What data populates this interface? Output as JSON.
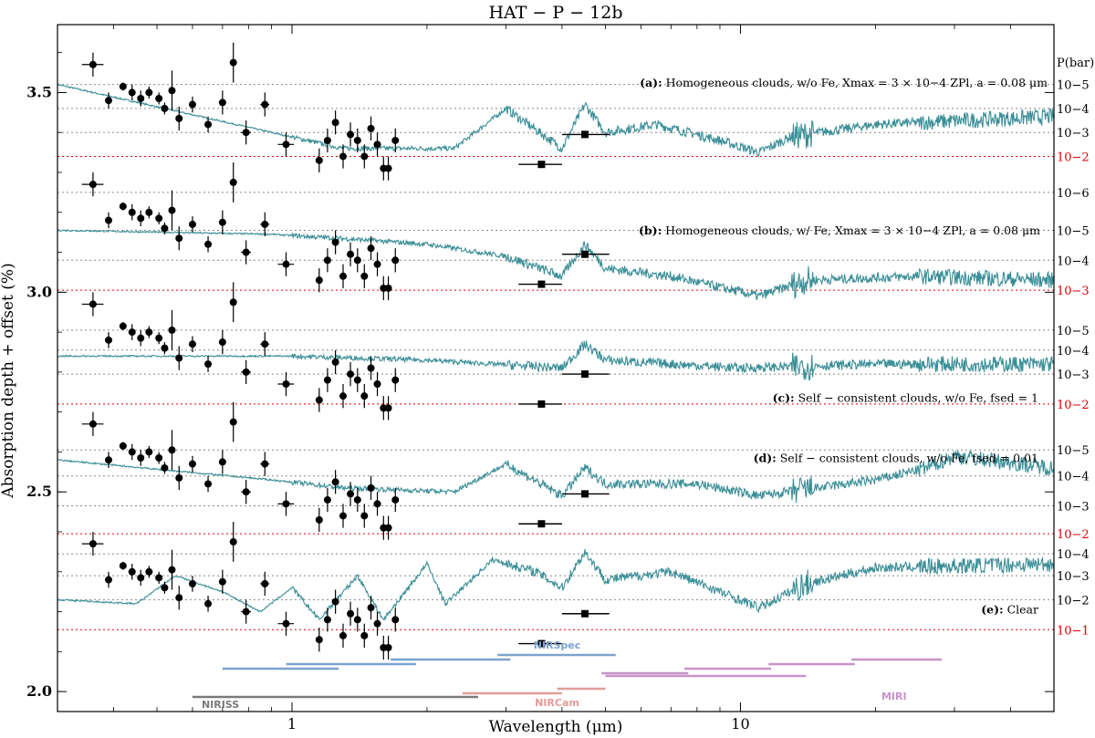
{
  "chart_data": {
    "type": "line",
    "title": "HAT − P − 12b",
    "xlabel": "Wavelength (μm)",
    "ylabel": "Absorption depth + offset (%)",
    "xscale": "log",
    "xlim": [
      0.3,
      50
    ],
    "ylim": [
      1.95,
      3.67
    ],
    "x_ticks": [
      1,
      10
    ],
    "x_tick_labels": [
      "1",
      "10"
    ],
    "y_ticks": [
      2.0,
      2.5,
      3.0,
      3.5
    ],
    "y_tick_labels": [
      "2.0",
      "2.5",
      "3.0",
      "3.5"
    ],
    "pressure_axis_title": "P(bar)",
    "model_color": "#3a8e97",
    "ref_line_colors": {
      "gray": "#888888",
      "red": "#e00000"
    },
    "panels": [
      {
        "id": "a",
        "offset": 1.2,
        "annotation_prefix": "(a):",
        "annotation": "Homogeneous clouds, w/o Fe, X_max = 3 × 10^-4 Z_Pl, a = 0.08 μm",
        "annotation_text": " Homogeneous clouds, w/o Fe, Xmax = 3 × 10−4 ZPl, a = 0.08 μm",
        "model_profile": "hazy",
        "model_anchor": [
          [
            0.3,
            3.52
          ],
          [
            0.9,
            3.4
          ],
          [
            1.3,
            3.36
          ],
          [
            2.3,
            3.36
          ],
          [
            3.0,
            3.46
          ],
          [
            4.0,
            3.36
          ],
          [
            4.5,
            3.47
          ],
          [
            5.0,
            3.4
          ],
          [
            6.5,
            3.42
          ],
          [
            9.0,
            3.38
          ],
          [
            11.0,
            3.35
          ],
          [
            13.0,
            3.39
          ],
          [
            20.0,
            3.42
          ],
          [
            50.0,
            3.44
          ]
        ],
        "pressure_levels": [
          {
            "label": "10^-5",
            "text": "10−5",
            "y": 3.52,
            "color": "gray"
          },
          {
            "label": "10^-4",
            "text": "10−4",
            "y": 3.46,
            "color": "gray"
          },
          {
            "label": "10^-3",
            "text": "10−3",
            "y": 3.4,
            "color": "gray"
          },
          {
            "label": "10^-2",
            "text": "10−2",
            "y": 3.34,
            "color": "red"
          }
        ]
      },
      {
        "id": "b",
        "offset": 0.9,
        "annotation_prefix": "(b):",
        "annotation": "Homogeneous clouds, w/ Fe, X_max = 3 × 10^-4 Z_Pl, a = 0.08 μm",
        "annotation_text": " Homogeneous clouds, w/ Fe, Xmax = 3 × 10−4 ZPl, a = 0.08 μm",
        "model_profile": "flat",
        "model_anchor": [
          [
            0.3,
            3.155
          ],
          [
            0.9,
            3.145
          ],
          [
            1.5,
            3.13
          ],
          [
            2.0,
            3.12
          ],
          [
            3.0,
            3.09
          ],
          [
            4.0,
            3.04
          ],
          [
            4.5,
            3.12
          ],
          [
            5.0,
            3.06
          ],
          [
            7.0,
            3.04
          ],
          [
            11.0,
            2.99
          ],
          [
            14.0,
            3.03
          ],
          [
            25.0,
            3.04
          ],
          [
            50.0,
            3.03
          ]
        ],
        "pressure_levels": [
          {
            "label": "10^-6",
            "text": "10−6",
            "y": 3.25,
            "color": "gray"
          },
          {
            "label": "10^-5",
            "text": "10−5",
            "y": 3.155,
            "color": "gray"
          },
          {
            "label": "10^-4",
            "text": "10−4",
            "y": 3.08,
            "color": "gray"
          },
          {
            "label": "10^-3",
            "text": "10−3",
            "y": 3.005,
            "color": "red"
          }
        ]
      },
      {
        "id": "c",
        "offset": 0.6,
        "annotation_prefix": "(c):",
        "annotation": "Self − consistent clouds, w/o Fe, f_sed = 1",
        "annotation_text": " Self − consistent clouds, w/o Fe, fsed = 1",
        "model_profile": "flat",
        "model_anchor": [
          [
            0.3,
            2.84
          ],
          [
            1.0,
            2.84
          ],
          [
            2.0,
            2.83
          ],
          [
            4.0,
            2.81
          ],
          [
            4.5,
            2.87
          ],
          [
            5.0,
            2.83
          ],
          [
            10.0,
            2.81
          ],
          [
            20.0,
            2.82
          ],
          [
            50.0,
            2.82
          ]
        ],
        "pressure_levels": [
          {
            "label": "10^-5",
            "text": "10−5",
            "y": 2.905,
            "color": "gray"
          },
          {
            "label": "10^-4",
            "text": "10−4",
            "y": 2.855,
            "color": "gray"
          },
          {
            "label": "10^-3",
            "text": "10−3",
            "y": 2.795,
            "color": "gray"
          },
          {
            "label": "10^-2",
            "text": "10−2",
            "y": 2.72,
            "color": "red"
          }
        ]
      },
      {
        "id": "d",
        "offset": 0.3,
        "annotation_prefix": "(d):",
        "annotation": "Self − consistent clouds, w/o Fe, f_sed = 0.01",
        "annotation_text": " Self − consistent clouds, w/o Fe, fsed = 0.01",
        "model_profile": "hazy",
        "model_anchor": [
          [
            0.3,
            2.58
          ],
          [
            0.9,
            2.53
          ],
          [
            1.3,
            2.51
          ],
          [
            2.3,
            2.5
          ],
          [
            3.0,
            2.57
          ],
          [
            4.0,
            2.49
          ],
          [
            4.5,
            2.56
          ],
          [
            5.0,
            2.52
          ],
          [
            8.0,
            2.52
          ],
          [
            11.0,
            2.49
          ],
          [
            20.0,
            2.53
          ],
          [
            26.0,
            2.56
          ],
          [
            30.0,
            2.59
          ],
          [
            50.0,
            2.56
          ]
        ],
        "pressure_levels": [
          {
            "label": "10^-5",
            "text": "10−5",
            "y": 2.605,
            "color": "gray"
          },
          {
            "label": "10^-4",
            "text": "10−4",
            "y": 2.54,
            "color": "gray"
          },
          {
            "label": "10^-3",
            "text": "10−3",
            "y": 2.465,
            "color": "gray"
          },
          {
            "label": "10^-2",
            "text": "10−2",
            "y": 2.395,
            "color": "red"
          }
        ]
      },
      {
        "id": "e",
        "offset": 0.0,
        "annotation_prefix": "(e):",
        "annotation": "Clear",
        "annotation_text": " Clear",
        "model_profile": "clear",
        "model_anchor": [
          [
            0.3,
            2.23
          ],
          [
            0.45,
            2.22
          ],
          [
            0.55,
            2.29
          ],
          [
            0.7,
            2.25
          ],
          [
            0.85,
            2.2
          ],
          [
            1.0,
            2.26
          ],
          [
            1.15,
            2.18
          ],
          [
            1.4,
            2.29
          ],
          [
            1.6,
            2.18
          ],
          [
            2.0,
            2.32
          ],
          [
            2.2,
            2.22
          ],
          [
            2.8,
            2.33
          ],
          [
            3.5,
            2.3
          ],
          [
            4.0,
            2.26
          ],
          [
            4.5,
            2.35
          ],
          [
            5.0,
            2.28
          ],
          [
            7.0,
            2.3
          ],
          [
            11.0,
            2.21
          ],
          [
            14.0,
            2.27
          ],
          [
            20.0,
            2.31
          ],
          [
            50.0,
            2.32
          ]
        ],
        "pressure_levels": [
          {
            "label": "10^-4",
            "text": "10−4",
            "y": 2.345,
            "color": "gray"
          },
          {
            "label": "10^-3",
            "text": "10−3",
            "y": 2.29,
            "color": "gray"
          },
          {
            "label": "10^-2",
            "text": "10−2",
            "y": 2.23,
            "color": "gray"
          },
          {
            "label": "10^-1",
            "text": "10−1",
            "y": 2.155,
            "color": "red"
          }
        ]
      }
    ],
    "observations_base": {
      "circles": [
        {
          "x": 0.36,
          "y": 2.37,
          "xerr": 0.02,
          "yerr": 0.03
        },
        {
          "x": 0.39,
          "y": 2.28,
          "xerr": 0.0,
          "yerr": 0.02
        },
        {
          "x": 0.42,
          "y": 2.315,
          "xerr": 0.0,
          "yerr": 0.01
        },
        {
          "x": 0.44,
          "y": 2.3,
          "xerr": 0.0,
          "yerr": 0.02
        },
        {
          "x": 0.46,
          "y": 2.285,
          "xerr": 0.0,
          "yerr": 0.02
        },
        {
          "x": 0.48,
          "y": 2.3,
          "xerr": 0.0,
          "yerr": 0.015
        },
        {
          "x": 0.505,
          "y": 2.285,
          "xerr": 0.0,
          "yerr": 0.015
        },
        {
          "x": 0.52,
          "y": 2.26,
          "xerr": 0.0,
          "yerr": 0.015
        },
        {
          "x": 0.54,
          "y": 2.305,
          "xerr": 0.0,
          "yerr": 0.05
        },
        {
          "x": 0.56,
          "y": 2.235,
          "xerr": 0.0,
          "yerr": 0.03
        },
        {
          "x": 0.6,
          "y": 2.27,
          "xerr": 0.0,
          "yerr": 0.02
        },
        {
          "x": 0.65,
          "y": 2.22,
          "xerr": 0.0,
          "yerr": 0.02
        },
        {
          "x": 0.7,
          "y": 2.275,
          "xerr": 0.0,
          "yerr": 0.03
        },
        {
          "x": 0.74,
          "y": 2.375,
          "xerr": 0.0,
          "yerr": 0.05
        },
        {
          "x": 0.79,
          "y": 2.2,
          "xerr": 0.02,
          "yerr": 0.03
        },
        {
          "x": 0.87,
          "y": 2.27,
          "xerr": 0.02,
          "yerr": 0.03
        },
        {
          "x": 0.97,
          "y": 2.17,
          "xerr": 0.04,
          "yerr": 0.03
        },
        {
          "x": 1.15,
          "y": 2.13,
          "xerr": 0.0,
          "yerr": 0.03
        },
        {
          "x": 1.2,
          "y": 2.18,
          "xerr": 0.0,
          "yerr": 0.03
        },
        {
          "x": 1.25,
          "y": 2.225,
          "xerr": 0.0,
          "yerr": 0.03
        },
        {
          "x": 1.3,
          "y": 2.14,
          "xerr": 0.0,
          "yerr": 0.03
        },
        {
          "x": 1.35,
          "y": 2.195,
          "xerr": 0.0,
          "yerr": 0.03
        },
        {
          "x": 1.4,
          "y": 2.18,
          "xerr": 0.0,
          "yerr": 0.03
        },
        {
          "x": 1.45,
          "y": 2.14,
          "xerr": 0.0,
          "yerr": 0.03
        },
        {
          "x": 1.5,
          "y": 2.21,
          "xerr": 0.0,
          "yerr": 0.03
        },
        {
          "x": 1.55,
          "y": 2.17,
          "xerr": 0.0,
          "yerr": 0.03
        },
        {
          "x": 1.6,
          "y": 2.11,
          "xerr": 0.0,
          "yerr": 0.03
        },
        {
          "x": 1.64,
          "y": 2.11,
          "xerr": 0.0,
          "yerr": 0.03
        },
        {
          "x": 1.7,
          "y": 2.18,
          "xerr": 0.0,
          "yerr": 0.03
        }
      ],
      "squares": [
        {
          "x": 3.6,
          "y": 2.12,
          "xerr_lo": 0.4,
          "xerr_hi": 0.4,
          "yerr": 0.005
        },
        {
          "x": 4.5,
          "y": 2.195,
          "xerr_lo": 0.5,
          "xerr_hi": 0.6,
          "yerr": 0.005
        }
      ]
    },
    "instruments": [
      {
        "name": "NIRISS",
        "color": "#7a7a7a",
        "label_x": 0.72,
        "ranges": [
          [
            0.6,
            2.6
          ]
        ]
      },
      {
        "name": "NIRSpec",
        "color": "#7ba3cf",
        "label_x": 3.9,
        "ranges": [
          [
            0.7,
            1.27
          ],
          [
            0.97,
            1.89
          ],
          [
            1.66,
            3.07
          ],
          [
            2.87,
            5.27
          ]
        ]
      },
      {
        "name": "NIRCam",
        "color": "#e39c99",
        "label_x": 3.9,
        "ranges": [
          [
            2.4,
            4.0
          ],
          [
            3.9,
            5.0
          ]
        ]
      },
      {
        "name": "MIRI",
        "color": "#c892c8",
        "label_x": 22.0,
        "ranges": [
          [
            4.9,
            7.65
          ],
          [
            7.5,
            11.7
          ],
          [
            11.55,
            17.98
          ],
          [
            17.7,
            28.1
          ],
          [
            5.0,
            14.0
          ]
        ]
      }
    ]
  }
}
